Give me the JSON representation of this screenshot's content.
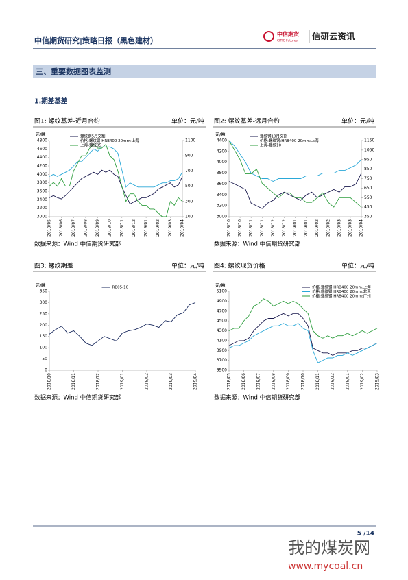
{
  "header": {
    "title": "中信期货研究|策略日报（黑色建材）",
    "logo_cn": "中信期货",
    "logo_en": "CITIC Futures",
    "brand": "信研云资讯"
  },
  "section_title": "三、重要数据图表监测",
  "subsection_title": "1.期差基差",
  "chart_data": [
    {
      "type": "line",
      "title": "图1: 螺纹基差-近月合约",
      "unit": "单位：元/吨",
      "ylabel": "元/吨",
      "source": "数据来源：Wind  中信期货研究部",
      "legend": "upper left",
      "categories": [
        "2018/05",
        null,
        null,
        "2018/06",
        null,
        null,
        "2018/07",
        null,
        null,
        "2018/08",
        null,
        null,
        "2018/09",
        null,
        null,
        "2018/10",
        null,
        null,
        "2018/11",
        null,
        null,
        "2018/12",
        null,
        null,
        "2019/01",
        null,
        null,
        "2019/02",
        null,
        null,
        "2019/03",
        null,
        null,
        "2019/04"
      ],
      "ylim": [
        3000,
        4800
      ],
      "yticks": [
        3000,
        3200,
        3400,
        3600,
        3800,
        4000,
        4200,
        4400,
        4600,
        4800
      ],
      "y2lim": [
        100,
        1100
      ],
      "y2ticks": [
        100,
        300,
        500,
        700,
        900,
        1100
      ],
      "series": [
        {
          "name": "螺纹钢5月交割",
          "color": "#1a1a4e",
          "values": [
            3450,
            3500,
            3450,
            3420,
            3500,
            3600,
            3700,
            3800,
            3900,
            3950,
            4000,
            4050,
            4000,
            4100,
            4050,
            4100,
            4000,
            3950,
            3700,
            3500,
            3300,
            3350,
            3400,
            3450,
            3450,
            3500,
            3550,
            3650,
            3700,
            3750,
            3800,
            3700,
            3750,
            3950
          ]
        },
        {
          "name": "价格:螺纹钢:HRB400 20mm:上海",
          "color": "#2aa8d8",
          "values": [
            3950,
            4000,
            3950,
            4000,
            4050,
            4100,
            4200,
            4300,
            4300,
            4400,
            4500,
            4600,
            4550,
            4650,
            4650,
            4650,
            4600,
            4500,
            4100,
            3700,
            3800,
            3750,
            3700,
            3700,
            3700,
            3700,
            3700,
            3750,
            3800,
            3800,
            3850,
            3850,
            3900,
            4050
          ]
        },
        {
          "name": "上海-螺纹05",
          "color": "#2e9e3e",
          "axis": "y2",
          "values": [
            500,
            550,
            500,
            600,
            500,
            500,
            700,
            800,
            900,
            900,
            1000,
            1050,
            1000,
            1000,
            1050,
            900,
            850,
            700,
            500,
            300,
            400,
            400,
            300,
            250,
            250,
            200,
            200,
            150,
            100,
            100,
            300,
            250,
            350,
            300
          ]
        }
      ]
    },
    {
      "type": "line",
      "title": "图2: 螺纹基差-远月合约",
      "unit": "单位：元/吨",
      "ylabel": "元/吨",
      "source": "数据来源：Wind  中信期货研究部",
      "legend": "upper left",
      "categories": [
        "2018/10",
        null,
        "2018/10",
        null,
        "2018/11",
        null,
        "2018/11",
        null,
        "2018/12",
        null,
        "2018/12",
        null,
        "2019/01",
        null,
        "2019/01",
        null,
        "2019/02",
        null,
        "2019/02",
        null,
        "2019/03",
        null,
        "2019/03",
        null,
        "2019/04"
      ],
      "ylim": [
        3000,
        4400
      ],
      "yticks": [
        3000,
        3200,
        3400,
        3600,
        3800,
        4000,
        4200,
        4400
      ],
      "y2lim": [
        350,
        1150
      ],
      "y2ticks": [
        350,
        450,
        550,
        650,
        750,
        850,
        950,
        1050,
        1150
      ],
      "series": [
        {
          "name": "螺纹钢10月交割",
          "color": "#1a1a4e",
          "values": [
            3650,
            3600,
            3550,
            3500,
            3250,
            3200,
            3150,
            3250,
            3300,
            3400,
            3450,
            3400,
            3350,
            3300,
            3400,
            3450,
            3350,
            3400,
            3450,
            3500,
            3450,
            3550,
            3550,
            3600,
            3800
          ]
        },
        {
          "name": "价格:螺纹钢:HRB400 20mm:上海",
          "color": "#2aa8d8",
          "values": [
            4400,
            4300,
            4150,
            4000,
            3800,
            3750,
            3700,
            3700,
            3650,
            3700,
            3700,
            3700,
            3700,
            3700,
            3750,
            3750,
            3750,
            3800,
            3800,
            3800,
            3850,
            3850,
            3900,
            3950,
            4050
          ]
        },
        {
          "name": "上海-螺纹10",
          "color": "#2e9e3e",
          "axis": "y2",
          "values": [
            1150,
            1050,
            950,
            800,
            800,
            850,
            700,
            650,
            600,
            550,
            600,
            600,
            550,
            550,
            500,
            500,
            550,
            600,
            500,
            450,
            550,
            550,
            550,
            500,
            450
          ]
        }
      ]
    },
    {
      "type": "line",
      "title": "图3: 螺纹期差",
      "unit": "单位：元/吨",
      "ylabel": "元/吨",
      "source": "数据来源：Wind  中信期货研究部",
      "legend": "upper center",
      "categories": [
        "2018/10",
        null,
        null,
        null,
        "2018/11",
        null,
        null,
        null,
        "2018/12",
        null,
        null,
        null,
        "2019/01",
        null,
        null,
        null,
        "2019/02",
        null,
        null,
        null,
        "2019/03",
        null,
        null,
        null,
        "2019/04"
      ],
      "ylim": [
        0,
        350
      ],
      "yticks": [
        0,
        50,
        100,
        150,
        200,
        250,
        300,
        350
      ],
      "series": [
        {
          "name": "RB05-10",
          "color": "#1a2a5e",
          "values": [
            160,
            180,
            195,
            165,
            175,
            150,
            120,
            110,
            130,
            150,
            140,
            130,
            165,
            175,
            180,
            190,
            205,
            200,
            190,
            220,
            215,
            245,
            255,
            290,
            300
          ]
        }
      ]
    },
    {
      "type": "line",
      "title": "图4: 螺纹现货价格",
      "unit": "单位：元/吨",
      "ylabel": "元/吨",
      "source": "数据来源：Wind  中信期货研究部",
      "legend": "upper right",
      "categories": [
        "2018/05",
        null,
        null,
        "2018/06",
        null,
        null,
        "2018/07",
        null,
        null,
        "2018/08",
        null,
        null,
        "2018/09",
        null,
        null,
        "2018/10",
        null,
        null,
        "2018/11",
        null,
        null,
        "2018/12",
        null,
        null,
        "2019/01",
        null,
        null,
        "2019/02",
        null,
        null,
        "2019/03"
      ],
      "ylim": [
        3500,
        5100
      ],
      "yticks": [
        3500,
        3700,
        3900,
        4100,
        4300,
        4500,
        4700,
        4900,
        5100
      ],
      "series": [
        {
          "name": "价格:螺纹钢:HRB400 20mm:上海",
          "color": "#1a1a4e",
          "values": [
            4000,
            4050,
            4100,
            4100,
            4150,
            4300,
            4400,
            4500,
            4550,
            4550,
            4600,
            4650,
            4600,
            4650,
            4650,
            4550,
            4400,
            3950,
            3900,
            3850,
            3850,
            3800,
            3850,
            3850,
            3850,
            3900,
            3900,
            3950,
            3950,
            4000,
            4050
          ]
        },
        {
          "name": "价格:螺纹钢:HRB400 20mm:北京",
          "color": "#2aa8d8",
          "values": [
            3950,
            4000,
            4000,
            4050,
            4100,
            4200,
            4250,
            4300,
            4350,
            4400,
            4400,
            4450,
            4400,
            4400,
            4450,
            4350,
            4300,
            3900,
            3650,
            3700,
            3750,
            3750,
            3800,
            3800,
            3850,
            3800,
            3850,
            3900,
            3950,
            4000,
            4050
          ]
        },
        {
          "name": "价格:螺纹钢:HRB400 20mm:广州",
          "color": "#2e9e3e",
          "values": [
            4300,
            4350,
            4350,
            4500,
            4600,
            4800,
            4850,
            4950,
            4900,
            4800,
            4850,
            4900,
            4850,
            4900,
            4850,
            4750,
            4650,
            4300,
            4200,
            4150,
            4200,
            4150,
            4200,
            4200,
            4250,
            4200,
            4250,
            4300,
            4250,
            4300,
            4350
          ]
        }
      ]
    }
  ],
  "page_number": "5 /14",
  "watermark": {
    "name": "我的煤炭网",
    "url": "www.mycoal.cn"
  }
}
